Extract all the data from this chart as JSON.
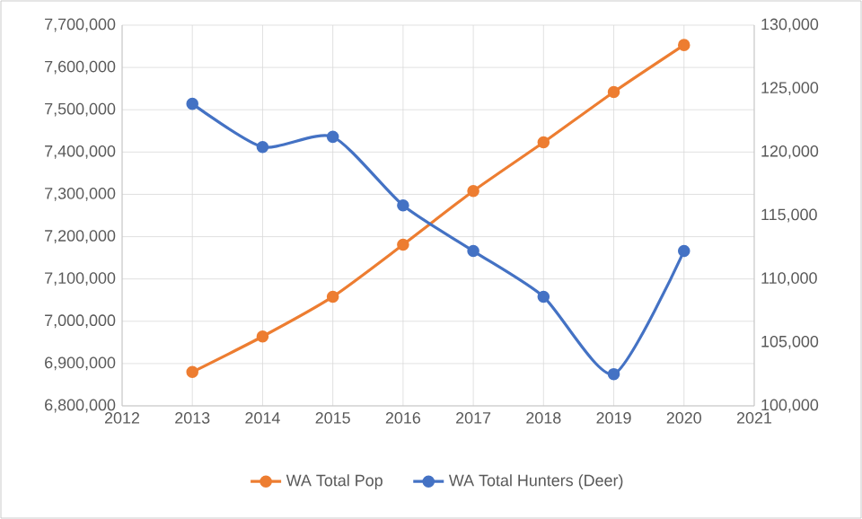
{
  "chart_data": {
    "type": "line",
    "x": [
      2013,
      2014,
      2015,
      2016,
      2017,
      2018,
      2019,
      2020
    ],
    "series": [
      {
        "name": "WA Total Pop",
        "color": "#ed7d31",
        "values": [
          6880000,
          6964000,
          7058000,
          7181000,
          7308000,
          7423000,
          7542000,
          7653000
        ]
      },
      {
        "name": "WA Total Hunters (Deer)",
        "color": "#4472c4",
        "axis": "y2",
        "values": [
          123800,
          120400,
          121200,
          115800,
          112200,
          108600,
          102500,
          112200
        ]
      }
    ],
    "xlim": [
      2012,
      2021
    ],
    "xticks": [
      2012,
      2013,
      2014,
      2015,
      2016,
      2017,
      2018,
      2019,
      2020,
      2021
    ],
    "ylim": [
      6800000,
      7700000
    ],
    "yticks": [
      {
        "value": 6800000,
        "label": "6,800,000"
      },
      {
        "value": 6900000,
        "label": "6,900,000"
      },
      {
        "value": 7000000,
        "label": "7,000,000"
      },
      {
        "value": 7100000,
        "label": "7,100,000"
      },
      {
        "value": 7200000,
        "label": "7,200,000"
      },
      {
        "value": 7300000,
        "label": "7,300,000"
      },
      {
        "value": 7400000,
        "label": "7,400,000"
      },
      {
        "value": 7500000,
        "label": "7,500,000"
      },
      {
        "value": 7600000,
        "label": "7,600,000"
      },
      {
        "value": 7700000,
        "label": "7,700,000"
      }
    ],
    "y2lim": [
      100000,
      130000
    ],
    "y2ticks": [
      {
        "value": 100000,
        "label": "100,000"
      },
      {
        "value": 105000,
        "label": "105,000"
      },
      {
        "value": 110000,
        "label": "110,000"
      },
      {
        "value": 115000,
        "label": "115,000"
      },
      {
        "value": 120000,
        "label": "120,000"
      },
      {
        "value": 125000,
        "label": "125,000"
      },
      {
        "value": 130000,
        "label": "130,000"
      }
    ],
    "grid": true,
    "legend": "bottom",
    "marker": "circle",
    "line_style": "solid"
  }
}
